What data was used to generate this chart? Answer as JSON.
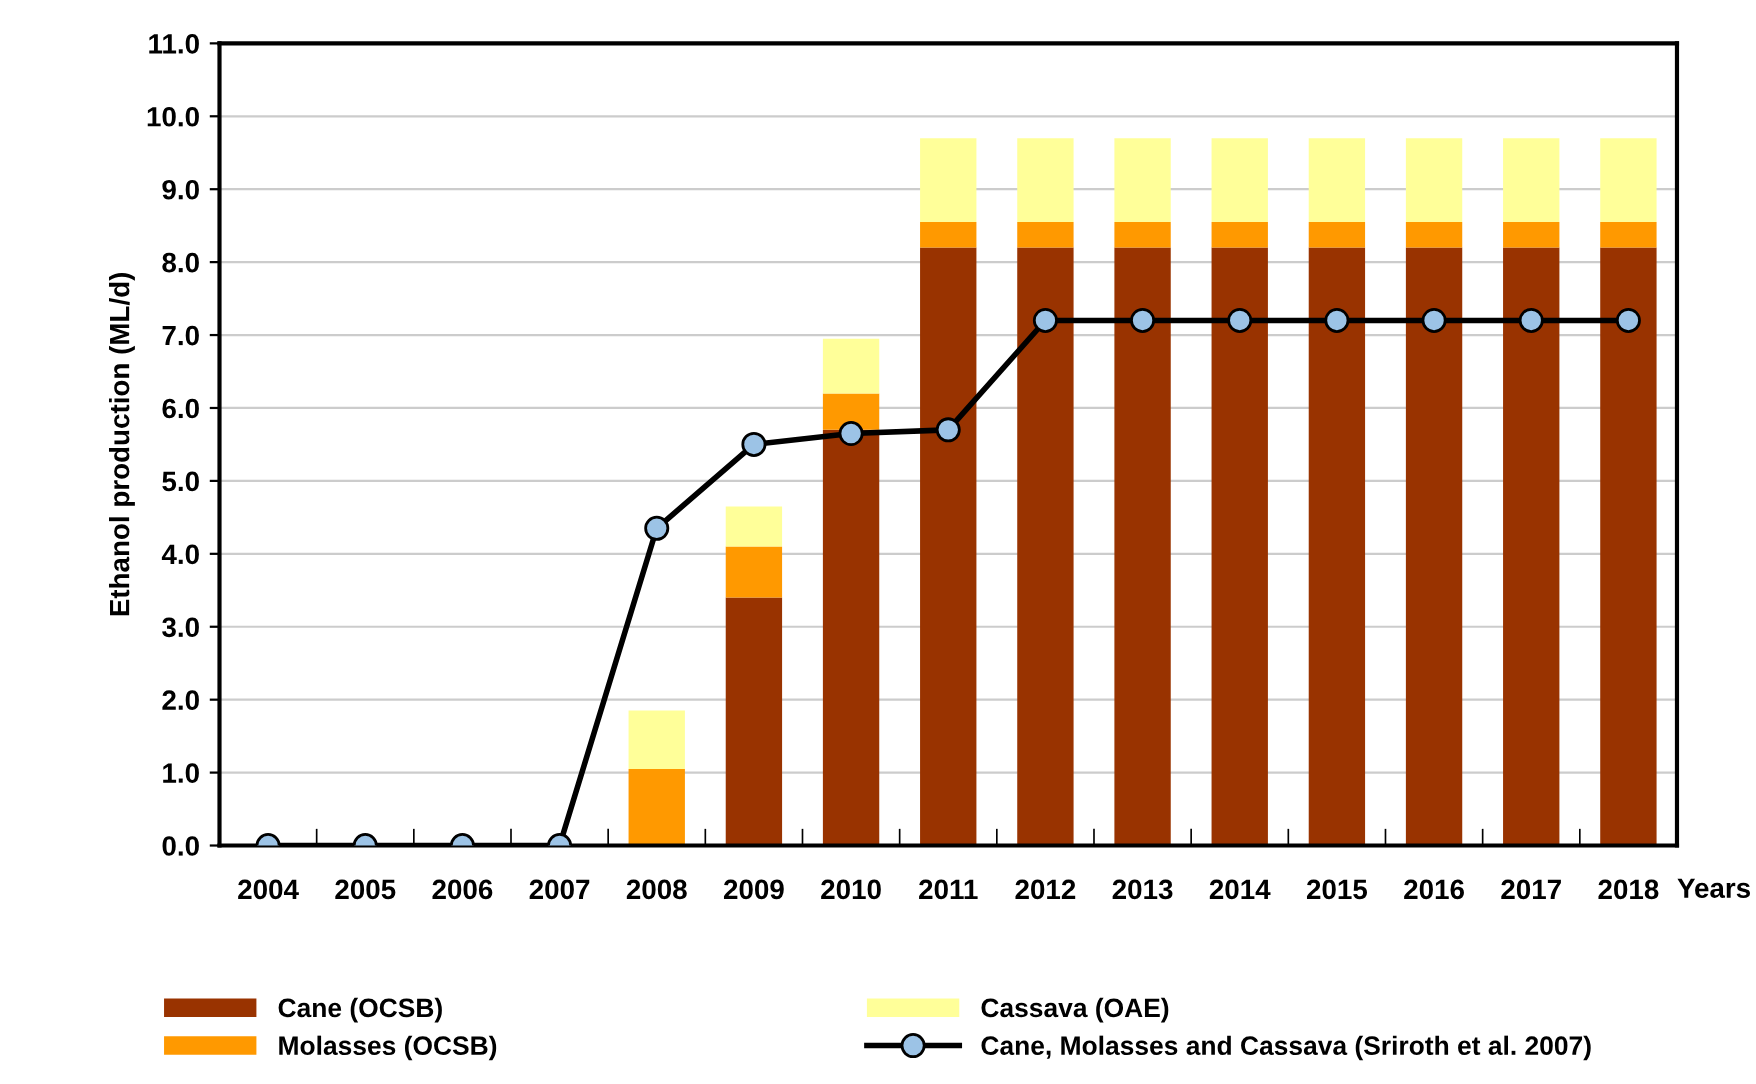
{
  "chart_data": {
    "type": "bar",
    "stacked": true,
    "xlabel": "Years",
    "ylabel": "Ethanol production (ML/d)",
    "categories": [
      "2004",
      "2005",
      "2006",
      "2007",
      "2008",
      "2009",
      "2010",
      "2011",
      "2012",
      "2013",
      "2014",
      "2015",
      "2016",
      "2017",
      "2018"
    ],
    "series": [
      {
        "name": "Cane (OCSB)",
        "color": "#993300",
        "values": [
          0,
          0,
          0,
          0,
          0,
          3.4,
          5.7,
          8.2,
          8.2,
          8.2,
          8.2,
          8.2,
          8.2,
          8.2,
          8.2
        ]
      },
      {
        "name": "Molasses (OCSB)",
        "color": "#ff9900",
        "values": [
          0,
          0,
          0,
          0,
          1.05,
          0.7,
          0.5,
          0.35,
          0.35,
          0.35,
          0.35,
          0.35,
          0.35,
          0.35,
          0.35
        ]
      },
      {
        "name": "Cassava (OAE)",
        "color": "#ffff99",
        "values": [
          0,
          0,
          0,
          0,
          0.8,
          0.55,
          0.75,
          1.15,
          1.15,
          1.15,
          1.15,
          1.15,
          1.15,
          1.15,
          1.15
        ]
      },
      {
        "name": "Cane, Molasses and Cassava (Sriroth et al. 2007)",
        "type": "line",
        "color": "#000000",
        "marker": "circle",
        "values": [
          0,
          0,
          0,
          0,
          4.35,
          5.5,
          5.65,
          5.7,
          7.2,
          7.2,
          7.2,
          7.2,
          7.2,
          7.2,
          7.2
        ]
      }
    ],
    "ylim": [
      0,
      11
    ],
    "yticks": [
      {
        "value": 0,
        "label": "0.0"
      },
      {
        "value": 1,
        "label": "1.0"
      },
      {
        "value": 2,
        "label": "2.0"
      },
      {
        "value": 3,
        "label": "3.0"
      },
      {
        "value": 4,
        "label": "4.0"
      },
      {
        "value": 5,
        "label": "5.0"
      },
      {
        "value": 6,
        "label": "6.0"
      },
      {
        "value": 7,
        "label": "7.0"
      },
      {
        "value": 8,
        "label": "8.0"
      },
      {
        "value": 9,
        "label": "9.0"
      },
      {
        "value": 10,
        "label": "10.0"
      },
      {
        "value": 11,
        "label": "11.0"
      }
    ],
    "grid": "y",
    "legend": "bottom"
  }
}
